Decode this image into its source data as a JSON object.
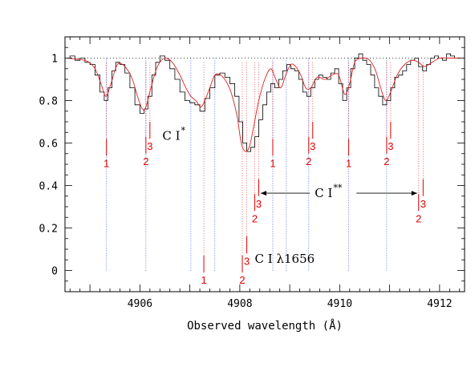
{
  "chart_data": {
    "type": "line",
    "xlabel": "Observed wavelength (Å)",
    "ylabel": "",
    "xlim": [
      4904.5,
      4912.5
    ],
    "ylim": [
      -0.1,
      1.1
    ],
    "x_ticks": [
      4906,
      4908,
      4910,
      4912
    ],
    "y_ticks": [
      0,
      0.2,
      0.4,
      0.6,
      0.8,
      1
    ],
    "continuum_level": 1.0,
    "series": [
      {
        "style": "step",
        "color": "#000000",
        "x": [
          4904.55,
          4904.65,
          4904.75,
          4904.85,
          4904.95,
          4905.05,
          4905.15,
          4905.25,
          4905.32,
          4905.4,
          4905.48,
          4905.55,
          4905.65,
          4905.75,
          4905.85,
          4905.95,
          4906.05,
          4906.12,
          4906.2,
          4906.28,
          4906.35,
          4906.45,
          4906.55,
          4906.65,
          4906.75,
          4906.85,
          4906.95,
          4907.05,
          4907.15,
          4907.25,
          4907.35,
          4907.45,
          4907.55,
          4907.65,
          4907.75,
          4907.85,
          4907.95,
          4908.02,
          4908.1,
          4908.18,
          4908.26,
          4908.34,
          4908.42,
          4908.5,
          4908.58,
          4908.66,
          4908.74,
          4908.82,
          4908.9,
          4908.98,
          4909.06,
          4909.14,
          4909.22,
          4909.3,
          4909.38,
          4909.46,
          4909.54,
          4909.62,
          4909.7,
          4909.78,
          4909.86,
          4909.94,
          4910.02,
          4910.1,
          4910.18,
          4910.26,
          4910.34,
          4910.42,
          4910.5,
          4910.58,
          4910.66,
          4910.74,
          4910.82,
          4910.9,
          4910.98,
          4911.06,
          4911.14,
          4911.22,
          4911.3,
          4911.38,
          4911.46,
          4911.54,
          4911.62,
          4911.7,
          4911.78,
          4911.86,
          4911.94,
          4912.02,
          4912.1,
          4912.18,
          4912.26,
          4912.34,
          4912.42
        ],
        "y": [
          1.0,
          1.01,
          0.99,
          1.0,
          0.98,
          0.97,
          0.92,
          0.84,
          0.8,
          0.86,
          0.94,
          0.98,
          0.97,
          0.93,
          0.86,
          0.78,
          0.74,
          0.76,
          0.82,
          0.92,
          0.98,
          1.01,
          0.99,
          0.95,
          0.9,
          0.84,
          0.8,
          0.79,
          0.78,
          0.75,
          0.81,
          0.86,
          0.92,
          0.93,
          0.91,
          0.88,
          0.82,
          0.7,
          0.6,
          0.56,
          0.58,
          0.63,
          0.71,
          0.78,
          0.84,
          0.88,
          0.86,
          0.9,
          0.94,
          0.97,
          0.95,
          0.94,
          0.9,
          0.84,
          0.82,
          0.86,
          0.9,
          0.92,
          0.91,
          0.9,
          0.93,
          0.95,
          0.88,
          0.8,
          0.86,
          0.95,
          1.0,
          1.02,
          0.99,
          0.97,
          0.92,
          0.86,
          0.82,
          0.78,
          0.8,
          0.86,
          0.91,
          0.92,
          0.94,
          0.97,
          0.99,
          1.0,
          0.96,
          0.94,
          0.97,
          1.0,
          1.01,
          1.0,
          0.99,
          1.02,
          1.01,
          1.0,
          1.0
        ]
      },
      {
        "style": "smooth",
        "color": "#e02020",
        "x": [
          4904.55,
          4904.75,
          4904.95,
          4905.1,
          4905.22,
          4905.32,
          4905.42,
          4905.55,
          4905.7,
          4905.85,
          4905.95,
          4906.05,
          4906.12,
          4906.22,
          4906.35,
          4906.5,
          4906.65,
          4906.8,
          4906.92,
          4907.02,
          4907.12,
          4907.22,
          4907.3,
          4907.4,
          4907.5,
          4907.62,
          4907.75,
          4907.85,
          4907.95,
          4908.03,
          4908.12,
          4908.2,
          4908.28,
          4908.38,
          4908.5,
          4908.62,
          4908.72,
          4908.82,
          4908.92,
          4909.02,
          4909.12,
          4909.22,
          4909.32,
          4909.42,
          4909.55,
          4909.7,
          4909.85,
          4909.98,
          4910.1,
          4910.2,
          4910.3,
          4910.45,
          4910.6,
          4910.72,
          4910.82,
          4910.92,
          4911.02,
          4911.15,
          4911.3,
          4911.45,
          4911.58,
          4911.7,
          4911.85,
          4912.0,
          4912.2,
          4912.42
        ],
        "y": [
          1.0,
          0.995,
          0.985,
          0.95,
          0.88,
          0.82,
          0.88,
          0.97,
          0.96,
          0.9,
          0.82,
          0.76,
          0.77,
          0.86,
          0.96,
          1.0,
          0.98,
          0.92,
          0.86,
          0.82,
          0.8,
          0.77,
          0.8,
          0.86,
          0.92,
          0.92,
          0.88,
          0.82,
          0.72,
          0.6,
          0.56,
          0.59,
          0.68,
          0.8,
          0.9,
          0.95,
          0.9,
          0.86,
          0.92,
          0.97,
          0.96,
          0.92,
          0.86,
          0.86,
          0.91,
          0.9,
          0.92,
          0.92,
          0.83,
          0.88,
          0.98,
          1.0,
          0.99,
          0.94,
          0.86,
          0.8,
          0.84,
          0.92,
          0.97,
          0.99,
          0.98,
          0.96,
          0.98,
          1.0,
          1.0,
          1.0
        ]
      }
    ],
    "transition_markers": [
      {
        "group": "C I*",
        "lines": [
          {
            "x": 4905.33,
            "label": "1"
          },
          {
            "x": 4906.12,
            "label": "2"
          },
          {
            "x": 4906.2,
            "label": "3"
          }
        ]
      },
      {
        "group": "C I*",
        "lines": [
          {
            "x": 4908.66,
            "label": "1"
          },
          {
            "x": 4909.38,
            "label": "2"
          },
          {
            "x": 4909.46,
            "label": "3"
          }
        ]
      },
      {
        "group": "C I*",
        "lines": [
          {
            "x": 4910.18,
            "label": "1"
          },
          {
            "x": 4910.94,
            "label": "2"
          },
          {
            "x": 4911.02,
            "label": "3"
          }
        ]
      },
      {
        "group": "C I λ1656",
        "lines": [
          {
            "x": 4907.28,
            "label": "1"
          },
          {
            "x": 4908.05,
            "label": "2"
          },
          {
            "x": 4908.14,
            "label": "3"
          }
        ]
      },
      {
        "group": "C I**",
        "lines": [
          {
            "x": 4908.3,
            "label": "2"
          },
          {
            "x": 4908.38,
            "label": "3"
          },
          {
            "x": 4911.58,
            "label": "2"
          },
          {
            "x": 4911.67,
            "label": "3"
          }
        ]
      }
    ],
    "blue_dotted_x": [
      4905.33,
      4906.12,
      4907.02,
      4907.5,
      4908.66,
      4908.93,
      4909.38,
      4910.18,
      4910.94
    ],
    "annotations": [
      {
        "text": "C I",
        "sup": "*",
        "x": 4906.45,
        "y": 0.615
      },
      {
        "text": "C I",
        "sup": "**",
        "x": 4909.5,
        "y": 0.345
      },
      {
        "text": "C I λ1656",
        "sup": "",
        "x": 4908.3,
        "y": 0.035
      }
    ]
  }
}
